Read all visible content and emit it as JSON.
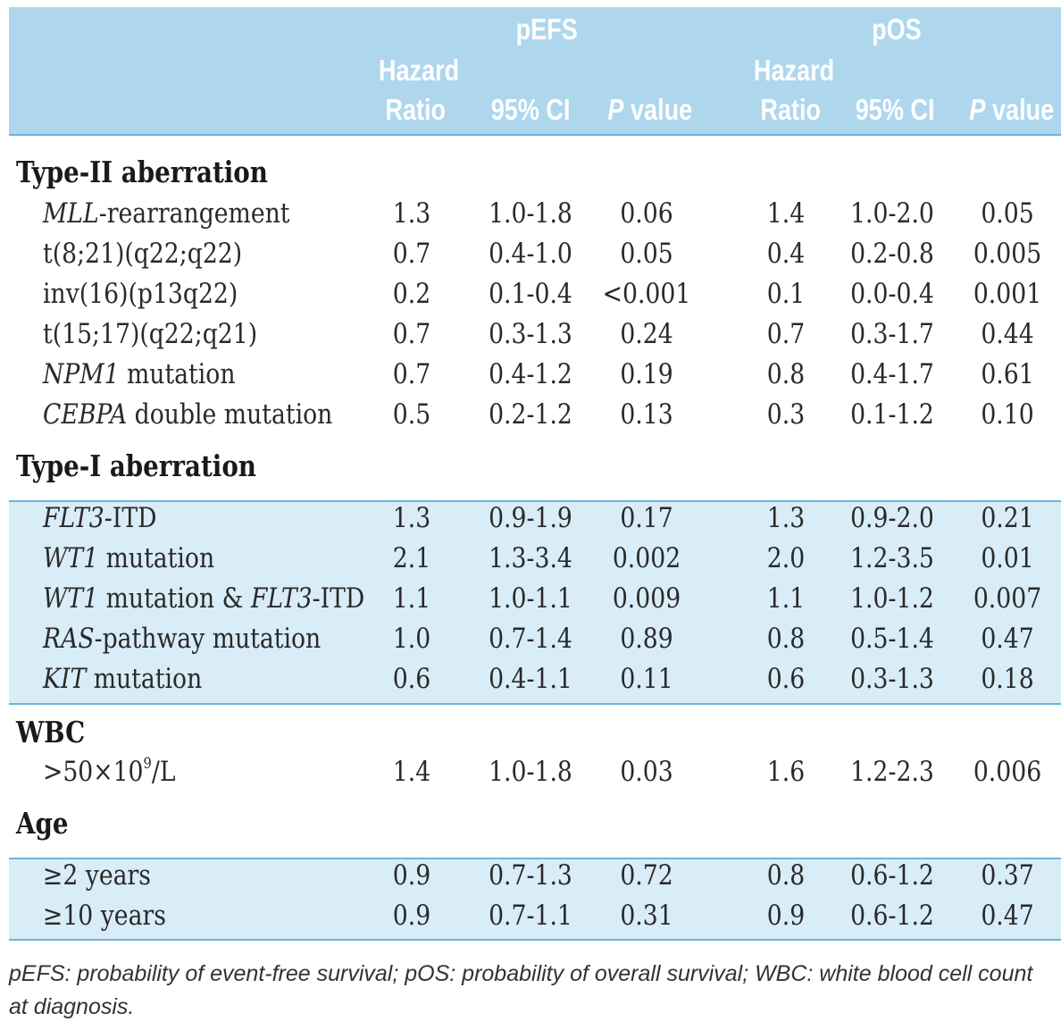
{
  "header": {
    "group_pefs": "pEFS",
    "group_pos": "pOS",
    "hr_line1": "Hazard",
    "hr_line2": "Ratio",
    "ci": "95% CI",
    "p_italic": "P",
    "p_rest": " value"
  },
  "sections": {
    "type2": "Type-II aberration",
    "type1": "Type-I aberration",
    "wbc": "WBC",
    "age": "Age"
  },
  "rows": [
    {
      "label_italic": "MLL",
      "label_rest": "-rearrangement",
      "pefs_hr": "1.3",
      "pefs_ci": "1.0-1.8",
      "pefs_p": "0.06",
      "pos_hr": "1.4",
      "pos_ci": "1.0-2.0",
      "pos_p": "0.05"
    },
    {
      "label_rest": "t(8;21)(q22;q22)",
      "pefs_hr": "0.7",
      "pefs_ci": "0.4-1.0",
      "pefs_p": "0.05",
      "pos_hr": "0.4",
      "pos_ci": "0.2-0.8",
      "pos_p": "0.005"
    },
    {
      "label_rest": "inv(16)(p13q22)",
      "pefs_hr": "0.2",
      "pefs_ci": "0.1-0.4",
      "pefs_p": "<0.001",
      "pos_hr": "0.1",
      "pos_ci": "0.0-0.4",
      "pos_p": "0.001"
    },
    {
      "label_rest": "t(15;17)(q22;q21)",
      "pefs_hr": "0.7",
      "pefs_ci": "0.3-1.3",
      "pefs_p": "0.24",
      "pos_hr": "0.7",
      "pos_ci": "0.3-1.7",
      "pos_p": "0.44"
    },
    {
      "label_italic": "NPM1",
      "label_rest": " mutation",
      "pefs_hr": "0.7",
      "pefs_ci": "0.4-1.2",
      "pefs_p": "0.19",
      "pos_hr": "0.8",
      "pos_ci": "0.4-1.7",
      "pos_p": "0.61"
    },
    {
      "label_italic": "CEBPA",
      "label_rest": " double mutation",
      "pefs_hr": "0.5",
      "pefs_ci": "0.2-1.2",
      "pefs_p": "0.13",
      "pos_hr": "0.3",
      "pos_ci": "0.1-1.2",
      "pos_p": "0.10"
    },
    {
      "label_italic": "FLT3",
      "label_rest": "-ITD",
      "pefs_hr": "1.3",
      "pefs_ci": "0.9-1.9",
      "pefs_p": "0.17",
      "pos_hr": "1.3",
      "pos_ci": "0.9-2.0",
      "pos_p": "0.21"
    },
    {
      "label_italic": "WT1",
      "label_rest": " mutation",
      "pefs_hr": "2.1",
      "pefs_ci": "1.3-3.4",
      "pefs_p": "0.002",
      "pos_hr": "2.0",
      "pos_ci": "1.2-3.5",
      "pos_p": "0.01"
    },
    {
      "label_italic": "WT1",
      "label_rest": " mutation & ",
      "label_italic2": "FLT3",
      "label_rest2": "-ITD",
      "pefs_hr": "1.1",
      "pefs_ci": "1.0-1.1",
      "pefs_p": "0.009",
      "pos_hr": "1.1",
      "pos_ci": "1.0-1.2",
      "pos_p": "0.007"
    },
    {
      "label_italic": "RAS",
      "label_rest": "-pathway mutation",
      "pefs_hr": "1.0",
      "pefs_ci": "0.7-1.4",
      "pefs_p": "0.89",
      "pos_hr": "0.8",
      "pos_ci": "0.5-1.4",
      "pos_p": "0.47"
    },
    {
      "label_italic": "KIT",
      "label_rest": " mutation",
      "pefs_hr": "0.6",
      "pefs_ci": "0.4-1.1",
      "pefs_p": "0.11",
      "pos_hr": "0.6",
      "pos_ci": "0.3-1.3",
      "pos_p": "0.18"
    },
    {
      "label_rest": ">50×10",
      "label_sup": "9",
      "label_rest2": "/L",
      "pefs_hr": "1.4",
      "pefs_ci": "1.0-1.8",
      "pefs_p": "0.03",
      "pos_hr": "1.6",
      "pos_ci": "1.2-2.3",
      "pos_p": "0.006"
    },
    {
      "label_rest": "≥2 years",
      "pefs_hr": "0.9",
      "pefs_ci": "0.7-1.3",
      "pefs_p": "0.72",
      "pos_hr": "0.8",
      "pos_ci": "0.6-1.2",
      "pos_p": "0.37"
    },
    {
      "label_rest": "≥10 years",
      "pefs_hr": "0.9",
      "pefs_ci": "0.7-1.1",
      "pefs_p": "0.31",
      "pos_hr": "0.9",
      "pos_ci": "0.6-1.2",
      "pos_p": "0.47"
    }
  ],
  "footnote": "pEFS: probability of event-free survival; pOS: probability of overall survival; WBC: white blood cell count at diagnosis.",
  "colors": {
    "header_bg": "#aed7ee",
    "band_bg": "#d8edf8",
    "rule": "#6fb3da",
    "header_text": "#ffffff"
  }
}
